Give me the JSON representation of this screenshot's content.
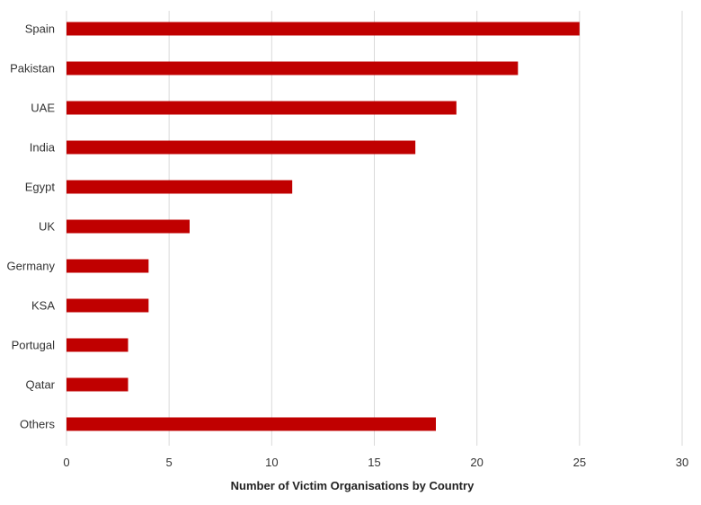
{
  "chart_data": {
    "type": "bar",
    "orientation": "horizontal",
    "categories": [
      "Spain",
      "Pakistan",
      "UAE",
      "India",
      "Egypt",
      "UK",
      "Germany",
      "KSA",
      "Portugal",
      "Qatar",
      "Others"
    ],
    "values": [
      25,
      22,
      19,
      17,
      11,
      6,
      4,
      4,
      3,
      3,
      18
    ],
    "xlabel": "Number of Victim Organisations by Country",
    "ylabel": "",
    "xlim": [
      0,
      30
    ],
    "xticks": [
      "0",
      "5",
      "10",
      "15",
      "20",
      "25",
      "30"
    ],
    "grid": "vertical",
    "legend": "none",
    "bar_color": "#c00000",
    "grid_color": "#d9d9d9"
  }
}
